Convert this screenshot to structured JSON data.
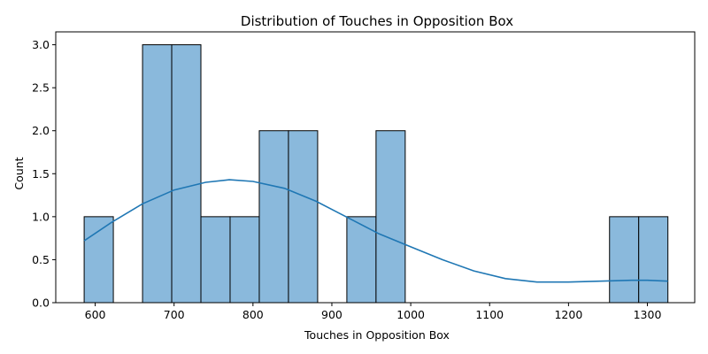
{
  "chart_data": {
    "type": "bar",
    "title": "Distribution of Touches in Opposition Box",
    "xlabel": "Touches in Opposition Box",
    "ylabel": "Count",
    "xlim": [
      550,
      1360
    ],
    "ylim": [
      0,
      3.15
    ],
    "xticks": [
      600,
      700,
      800,
      900,
      1000,
      1100,
      1200,
      1300
    ],
    "yticks": [
      "0.0",
      "0.5",
      "1.0",
      "1.5",
      "2.0",
      "2.5",
      "3.0"
    ],
    "bins": [
      {
        "start": 586,
        "end": 623,
        "count": 1
      },
      {
        "start": 623,
        "end": 660,
        "count": 0
      },
      {
        "start": 660,
        "end": 697,
        "count": 3
      },
      {
        "start": 697,
        "end": 734,
        "count": 3
      },
      {
        "start": 734,
        "end": 771,
        "count": 1
      },
      {
        "start": 771,
        "end": 808,
        "count": 1
      },
      {
        "start": 808,
        "end": 845,
        "count": 2
      },
      {
        "start": 845,
        "end": 882,
        "count": 2
      },
      {
        "start": 882,
        "end": 919,
        "count": 0
      },
      {
        "start": 919,
        "end": 956,
        "count": 1
      },
      {
        "start": 956,
        "end": 993,
        "count": 2
      },
      {
        "start": 993,
        "end": 1030,
        "count": 0
      },
      {
        "start": 1030,
        "end": 1067,
        "count": 0
      },
      {
        "start": 1067,
        "end": 1104,
        "count": 0
      },
      {
        "start": 1104,
        "end": 1141,
        "count": 0
      },
      {
        "start": 1141,
        "end": 1178,
        "count": 0
      },
      {
        "start": 1178,
        "end": 1215,
        "count": 0
      },
      {
        "start": 1215,
        "end": 1252,
        "count": 0
      },
      {
        "start": 1252,
        "end": 1289,
        "count": 1
      },
      {
        "start": 1289,
        "end": 1326,
        "count": 1
      }
    ],
    "kde": {
      "x": [
        586,
        620,
        660,
        700,
        740,
        770,
        800,
        840,
        880,
        920,
        960,
        1000,
        1040,
        1080,
        1120,
        1160,
        1200,
        1240,
        1280,
        1300,
        1326
      ],
      "y": [
        0.72,
        0.93,
        1.15,
        1.31,
        1.4,
        1.43,
        1.41,
        1.33,
        1.18,
        0.99,
        0.8,
        0.65,
        0.5,
        0.37,
        0.28,
        0.24,
        0.24,
        0.25,
        0.26,
        0.26,
        0.25
      ]
    },
    "grid": false,
    "colors": {
      "bar_fill": "#8ab9dc",
      "bar_edge": "#000000",
      "kde_line": "#1f77b4"
    }
  }
}
